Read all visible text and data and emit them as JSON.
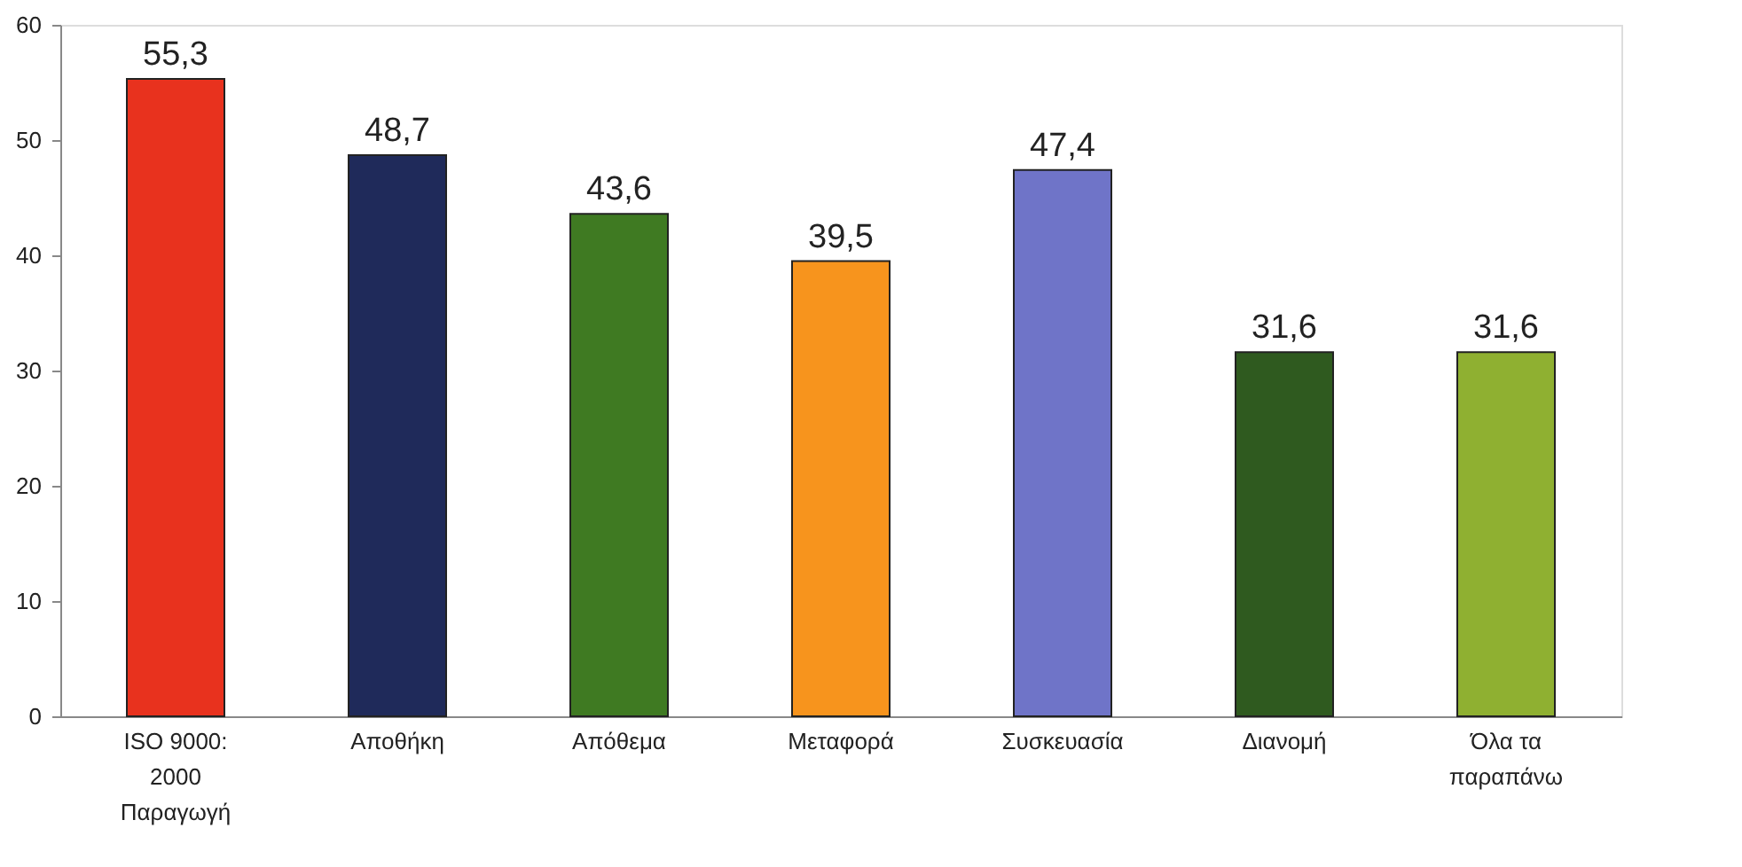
{
  "chart_data": {
    "type": "bar",
    "categories": [
      "ISO 9000: 2000 Παραγωγή",
      "Αποθήκη",
      "Απόθεμα",
      "Μεταφορά",
      "Συσκευασία",
      "Διανομή",
      "Όλα τα παραπάνω"
    ],
    "values": [
      55.3,
      48.7,
      43.6,
      39.5,
      47.4,
      31.6,
      31.6
    ],
    "value_labels": [
      "55,3",
      "48,7",
      "43,6",
      "39,5",
      "47,4",
      "31,6",
      "31,6"
    ],
    "colors": [
      "#e8321e",
      "#1f2a5a",
      "#3f7a22",
      "#f7941d",
      "#6f74c8",
      "#2f5a1f",
      "#8fb031"
    ],
    "ylim": [
      0,
      60
    ],
    "yticks": [
      0,
      10,
      20,
      30,
      40,
      50,
      60
    ],
    "grid": false
  }
}
